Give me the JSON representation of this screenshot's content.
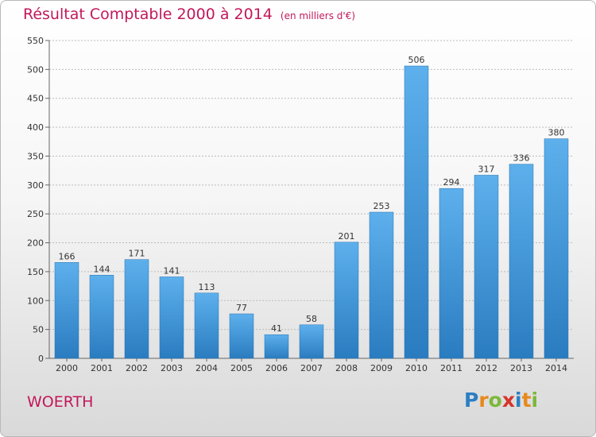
{
  "chart_data": {
    "type": "bar",
    "title": "Résultat Comptable 2000 à 2014",
    "subtitle": "(en milliers d'€)",
    "categories": [
      "2000",
      "2001",
      "2002",
      "2003",
      "2004",
      "2005",
      "2006",
      "2007",
      "2008",
      "2009",
      "2010",
      "2011",
      "2012",
      "2013",
      "2014"
    ],
    "values": [
      166,
      144,
      171,
      141,
      113,
      77,
      41,
      58,
      201,
      253,
      506,
      294,
      317,
      336,
      380
    ],
    "ylim": [
      0,
      550
    ],
    "yticks": [
      0,
      50,
      100,
      150,
      200,
      250,
      300,
      350,
      400,
      450,
      500,
      550
    ],
    "grid": true,
    "bar_color": "#3b8fd4"
  },
  "commune": "WOERTH",
  "logo": {
    "letters": [
      "P",
      "r",
      "o",
      "x",
      "i",
      "t",
      "i"
    ],
    "colors": [
      "#2b7fc4",
      "#e8891c",
      "#7cb83a",
      "#d6342b",
      "#2b7fc4",
      "#e8891c",
      "#7cb83a"
    ]
  },
  "colors": {
    "accent": "#c2185b",
    "grid": "#bbbbbb"
  }
}
